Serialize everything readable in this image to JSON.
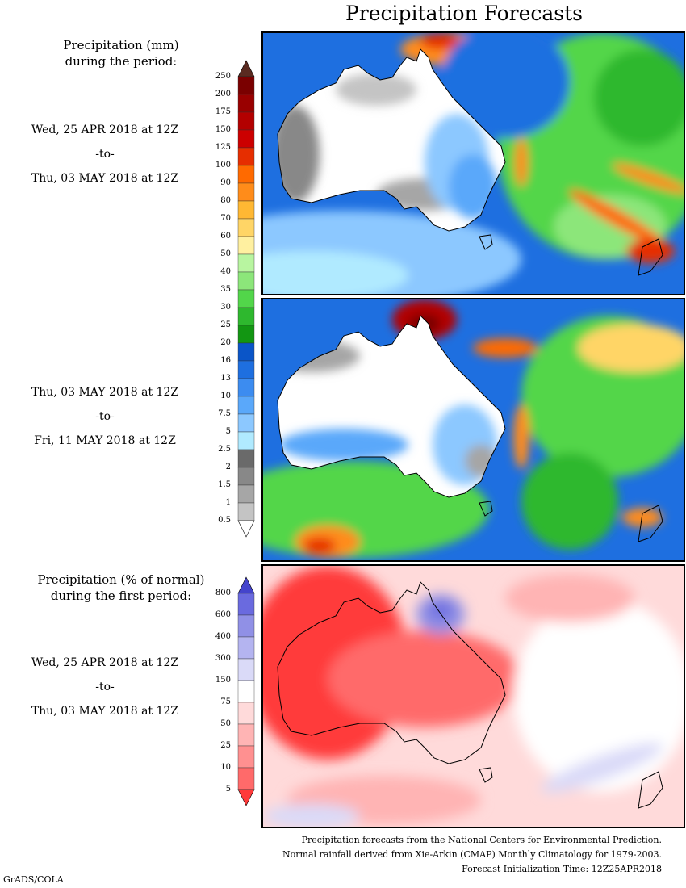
{
  "title": "Precipitation Forecasts",
  "colorbar_mm": {
    "title_line1": "Precipitation (mm)",
    "title_line2": "during the period:",
    "labels": [
      "250",
      "200",
      "175",
      "150",
      "125",
      "100",
      "90",
      "80",
      "70",
      "60",
      "50",
      "40",
      "35",
      "30",
      "25",
      "20",
      "16",
      "13",
      "10",
      "7.5",
      "5",
      "2.5",
      "2",
      "1.5",
      "1",
      "0.5"
    ],
    "colors": [
      "#5a2a20",
      "#7a0000",
      "#990000",
      "#b30000",
      "#cc0000",
      "#e62e00",
      "#ff6a00",
      "#ff8c1a",
      "#ffb833",
      "#ffd566",
      "#fff0a0",
      "#b8f5a0",
      "#8ce67a",
      "#52d64a",
      "#2eb82e",
      "#129612",
      "#0a55c8",
      "#1e6fe0",
      "#3c8cf0",
      "#5aa8fa",
      "#8cc8ff",
      "#b0eaff",
      "#6a6a6a",
      "#888888",
      "#a6a6a6",
      "#c4c4c4",
      "#ffffff"
    ]
  },
  "colorbar_pct": {
    "title_line1": "Precipitation (% of normal)",
    "title_line2": "during the first period:",
    "labels": [
      "800",
      "600",
      "400",
      "300",
      "150",
      "75",
      "50",
      "25",
      "10",
      "5"
    ],
    "colors": [
      "#4444cc",
      "#6a6adf",
      "#9090e6",
      "#b4b4f0",
      "#dadaf8",
      "#ffffff",
      "#ffdada",
      "#ffb4b4",
      "#ff9090",
      "#ff6a6a",
      "#ff3a3a"
    ]
  },
  "periods": [
    {
      "start": "Wed, 25 APR 2018 at 12Z",
      "sep": "-to-",
      "end": "Thu, 03 MAY 2018 at 12Z"
    },
    {
      "start": "Thu, 03 MAY 2018 at 12Z",
      "sep": "-to-",
      "end": "Fri, 11 MAY 2018 at 12Z"
    },
    {
      "start": "Wed, 25 APR 2018 at 12Z",
      "sep": "-to-",
      "end": "Thu, 03 MAY 2018 at 12Z"
    }
  ],
  "footer": {
    "line1": "Precipitation forecasts from the National Centers for Environmental Prediction.",
    "line2": "Normal rainfall derived from Xie-Arkin (CMAP) Monthly Climatology for 1979-2003.",
    "line3": "Forecast Initialization Time: 12Z25APR2018"
  },
  "software": "GrADS/COLA"
}
